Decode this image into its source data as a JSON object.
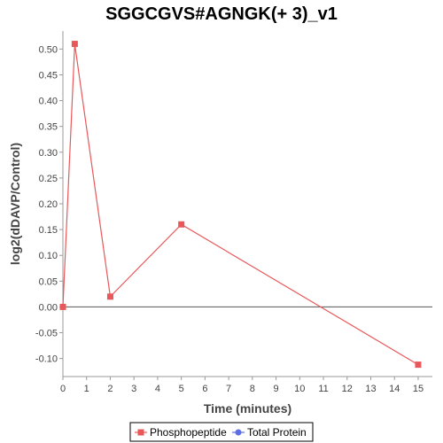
{
  "chart_data": {
    "type": "line",
    "title": "SGGCGVS#AGNGK(+ 3)_v1",
    "xlabel": "Time (minutes)",
    "ylabel": "log2(dDAVP/Control)",
    "xlim": [
      0,
      15.6
    ],
    "ylim": [
      -0.135,
      0.535
    ],
    "x_ticks": [
      "0",
      "1",
      "2",
      "3",
      "4",
      "5",
      "6",
      "7",
      "8",
      "9",
      "10",
      "11",
      "12",
      "13",
      "14",
      "15"
    ],
    "y_ticks": [
      "0.50",
      "0.45",
      "0.40",
      "0.35",
      "0.30",
      "0.25",
      "0.20",
      "0.15",
      "0.10",
      "0.05",
      "0.00",
      "-0.05",
      "-0.10"
    ],
    "x_tick_values": [
      0,
      1,
      2,
      3,
      4,
      5,
      6,
      7,
      8,
      9,
      10,
      11,
      12,
      13,
      14,
      15
    ],
    "y_tick_values": [
      0.5,
      0.45,
      0.4,
      0.35,
      0.3,
      0.25,
      0.2,
      0.15,
      0.1,
      0.05,
      0.0,
      -0.05,
      -0.1
    ],
    "grid": false,
    "legend_position": "bottom",
    "series": [
      {
        "name": "Phosphopeptide",
        "color": "#e8585a",
        "marker": "square",
        "points": [
          {
            "x": 0,
            "y": 0.0
          },
          {
            "x": 0.5,
            "y": 0.51
          },
          {
            "x": 2,
            "y": 0.02
          },
          {
            "x": 5,
            "y": 0.16
          },
          {
            "x": 15,
            "y": -0.112
          }
        ]
      },
      {
        "name": "Total Protein",
        "color": "#5b6ee8",
        "marker": "circle",
        "points": []
      }
    ]
  }
}
